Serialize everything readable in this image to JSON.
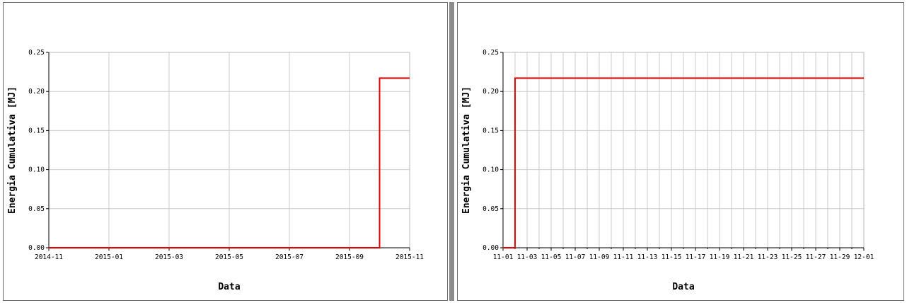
{
  "chart_data": [
    {
      "type": "line",
      "step": true,
      "xlabel": "Data",
      "ylabel": "Energia Cumulativa [MJ]",
      "ylim": [
        0,
        0.25
      ],
      "yticks": [
        "0.00",
        "0.05",
        "0.10",
        "0.15",
        "0.20",
        "0.25"
      ],
      "xlim": [
        "2014-11",
        "2015-11"
      ],
      "xticks": [
        "2014-11",
        "2015-01",
        "2015-03",
        "2015-05",
        "2015-07",
        "2015-09",
        "2015-11"
      ],
      "grid": true,
      "line_color": "#e60000",
      "series": [
        {
          "x": [
            "2014-11",
            "2015-10",
            "2015-10",
            "2015-11"
          ],
          "y": [
            0.0,
            0.0,
            0.217,
            0.217
          ]
        }
      ]
    },
    {
      "type": "line",
      "step": true,
      "xlabel": "Data",
      "ylabel": "Energia Cumulativa [MJ]",
      "ylim": [
        0,
        0.25
      ],
      "yticks": [
        "0.00",
        "0.05",
        "0.10",
        "0.15",
        "0.20",
        "0.25"
      ],
      "xlim": [
        "11-01",
        "12-01"
      ],
      "xticks": [
        "11-01",
        "11-03",
        "11-05",
        "11-07",
        "11-09",
        "11-11",
        "11-13",
        "11-15",
        "11-17",
        "11-19",
        "11-21",
        "11-23",
        "11-25",
        "11-27",
        "11-29",
        "12-01"
      ],
      "grid": true,
      "line_color": "#e60000",
      "series": [
        {
          "x": [
            "11-01",
            "11-02",
            "11-02",
            "12-01"
          ],
          "y": [
            0.0,
            0.0,
            0.217,
            0.217
          ]
        }
      ]
    }
  ]
}
